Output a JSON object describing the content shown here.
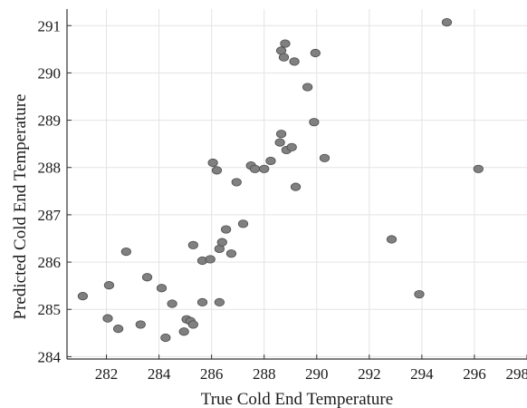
{
  "chart_data": {
    "type": "scatter",
    "title": "",
    "xlabel": "True Cold End Temperature",
    "ylabel": "Predicted Cold End Temperature",
    "xlim": [
      280.5,
      298
    ],
    "ylim": [
      283.95,
      291.35
    ],
    "xticks": [
      282,
      284,
      286,
      288,
      290,
      292,
      294,
      296,
      298
    ],
    "yticks": [
      284,
      285,
      286,
      287,
      288,
      289,
      290,
      291
    ],
    "grid": true,
    "legend": "none",
    "colors": {
      "marker": "#808080",
      "marker_edge": "#4a4a4a",
      "grid": "#e3e3e3"
    },
    "points": [
      [
        281.1,
        285.28
      ],
      [
        282.1,
        285.51
      ],
      [
        282.05,
        284.81
      ],
      [
        282.45,
        284.59
      ],
      [
        282.75,
        286.22
      ],
      [
        283.3,
        284.68
      ],
      [
        283.55,
        285.68
      ],
      [
        284.1,
        285.45
      ],
      [
        284.25,
        284.4
      ],
      [
        284.5,
        285.12
      ],
      [
        284.95,
        284.53
      ],
      [
        285.05,
        284.79
      ],
      [
        285.2,
        284.75
      ],
      [
        285.3,
        284.68
      ],
      [
        285.3,
        286.36
      ],
      [
        285.65,
        285.15
      ],
      [
        285.65,
        286.03
      ],
      [
        285.95,
        286.06
      ],
      [
        286.05,
        288.1
      ],
      [
        286.2,
        287.94
      ],
      [
        286.3,
        286.28
      ],
      [
        286.3,
        285.15
      ],
      [
        286.4,
        286.42
      ],
      [
        286.55,
        286.69
      ],
      [
        286.75,
        286.18
      ],
      [
        286.95,
        287.69
      ],
      [
        287.2,
        286.81
      ],
      [
        287.5,
        288.04
      ],
      [
        287.65,
        287.97
      ],
      [
        288.0,
        287.97
      ],
      [
        288.25,
        288.14
      ],
      [
        288.6,
        288.53
      ],
      [
        288.65,
        288.71
      ],
      [
        288.65,
        290.47
      ],
      [
        288.75,
        290.33
      ],
      [
        288.8,
        290.62
      ],
      [
        288.85,
        288.37
      ],
      [
        289.05,
        288.43
      ],
      [
        289.15,
        290.24
      ],
      [
        289.2,
        287.59
      ],
      [
        289.65,
        289.7
      ],
      [
        289.9,
        288.96
      ],
      [
        289.95,
        290.42
      ],
      [
        290.3,
        288.2
      ],
      [
        292.85,
        286.48
      ],
      [
        293.9,
        285.32
      ],
      [
        294.95,
        291.07
      ],
      [
        296.15,
        287.97
      ]
    ]
  }
}
